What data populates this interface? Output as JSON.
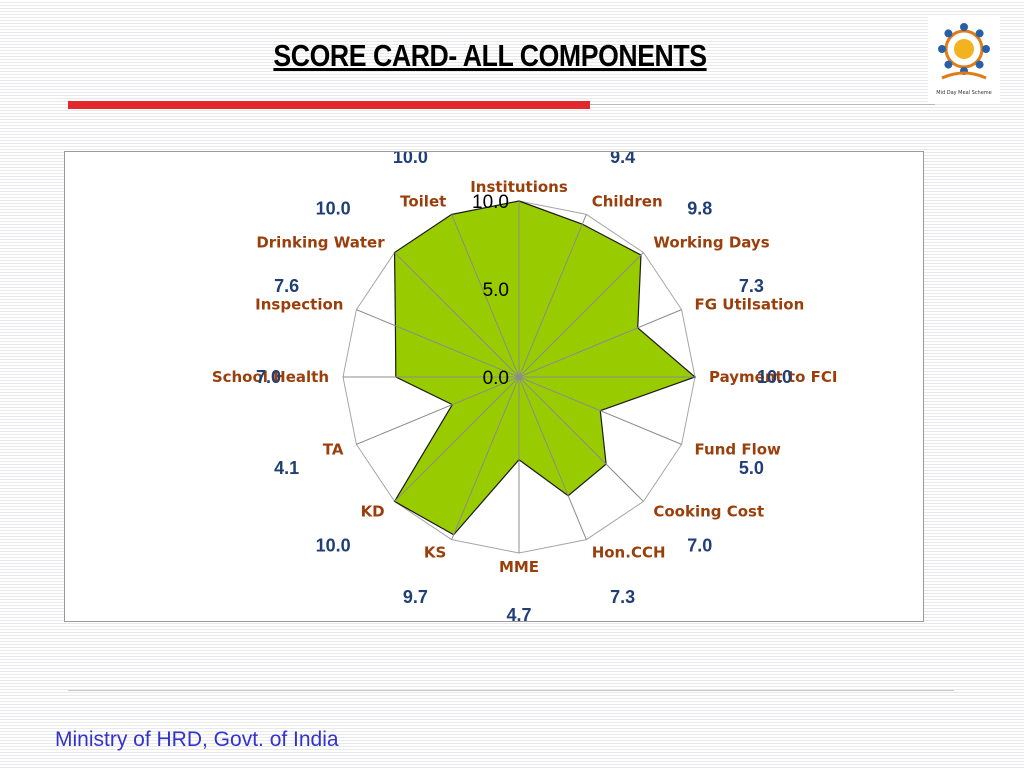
{
  "slide": {
    "title": "SCORE CARD- ALL COMPONENTS",
    "footer": "Ministry of HRD, Govt. of India",
    "logo_caption": "Mid Day Meal Scheme"
  },
  "colors": {
    "accent_rule": "#e3282d",
    "fill": "#99cc00",
    "category_label": "#9a3f0c",
    "value_label": "#1f3f75",
    "value_label_light": "#5b9bd5",
    "footer_text": "#3333cc"
  },
  "chart_data": {
    "type": "radar",
    "categories": [
      "Institutions",
      "Children",
      "Working Days",
      "FG Utilsation",
      "Payment to FCI",
      "Fund Flow",
      "Cooking Cost",
      "Hon.CCH",
      "MME",
      "KS",
      "KD",
      "TA",
      "School Health",
      "Inspection",
      "Drinking Water",
      "Toilet"
    ],
    "values": [
      10.0,
      9.4,
      9.8,
      7.3,
      10.0,
      5.0,
      7.0,
      7.3,
      4.7,
      9.7,
      10.0,
      4.1,
      7.0,
      7.6,
      10.0,
      10.0
    ],
    "value_labels": [
      "10.0",
      "9.4",
      "9.8",
      "7.3",
      "10.0",
      "5.0",
      "7.0",
      "7.3",
      "4.7",
      "9.7",
      "10.0",
      "4.1",
      "7.0",
      "7.6",
      "10.0",
      "10.0"
    ],
    "radial_ticks": [
      "0.0",
      "5.0",
      "10.0"
    ],
    "range": [
      0,
      10
    ],
    "grid": true,
    "legend": "none"
  }
}
